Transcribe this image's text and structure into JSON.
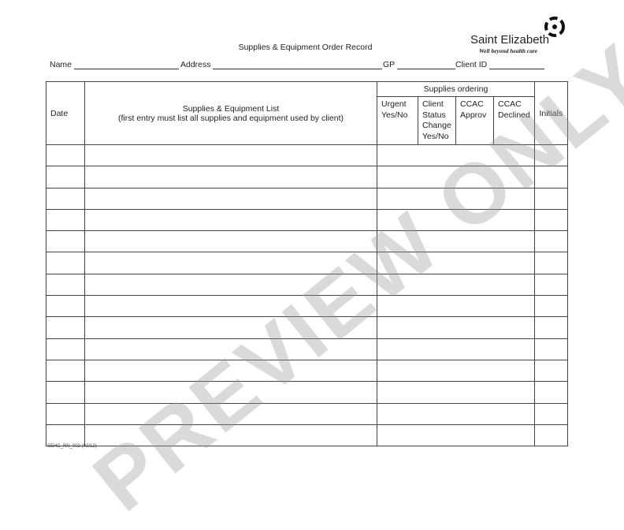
{
  "title": "Supplies & Equipment Order Record",
  "logo": {
    "name": "Saint Elizabeth",
    "tagline": "Well beyond health care"
  },
  "fields": [
    {
      "label": "Name",
      "value": ""
    },
    {
      "label": "Address",
      "value": ""
    },
    {
      "label": "GP",
      "value": ""
    },
    {
      "label": "Client ID",
      "value": ""
    }
  ],
  "table": {
    "headers": {
      "date": "Date",
      "list_title": "Supplies & Equipment List",
      "list_note": "(first entry must list all supplies and equipment used by client)",
      "ordering": "Supplies ordering",
      "urgent": [
        "Urgent",
        "Yes/No"
      ],
      "client_status": [
        "Client",
        "Status",
        "Change",
        "Yes/No"
      ],
      "ccac_approv": [
        "CCAC",
        "Approv"
      ],
      "ccac_declined": [
        "CCAC",
        "Declined"
      ],
      "initials": "Initials"
    },
    "row_count": 14
  },
  "footer": "SEHC_RN_002 (02/12)",
  "watermark": "PREVIEW ONLY"
}
